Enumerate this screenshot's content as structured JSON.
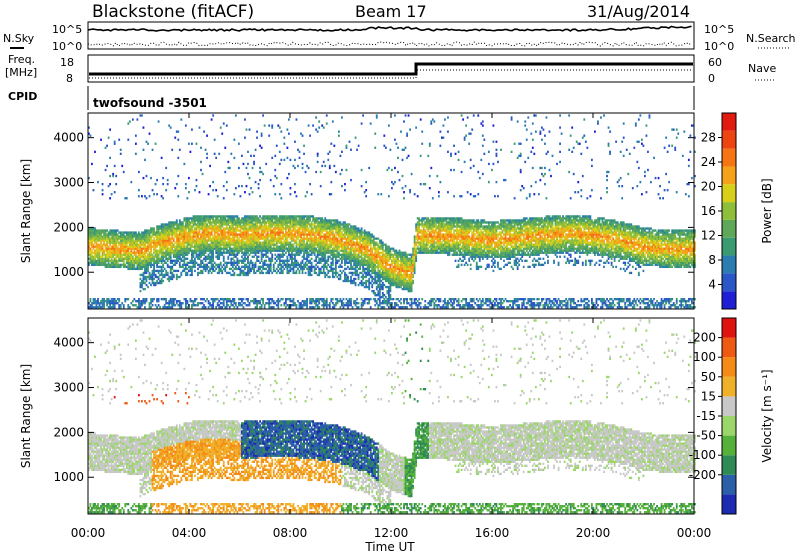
{
  "header": {
    "station": "Blackstone (fitACF)",
    "beam": "Beam 17",
    "date": "31/Aug/2014"
  },
  "labels": {
    "nsky": "N.Sky",
    "nsearch": "N.Search",
    "freq_line1": "Freq.",
    "freq_line2": "[MHz]",
    "nave": "Nave",
    "cpid": "CPID",
    "cpid_value": "twofsound  -3501",
    "noise_tick_top_left": "10^5",
    "noise_tick_bottom_left": "10^0",
    "noise_tick_top_right": "10^5",
    "noise_tick_bottom_right": "10^0",
    "freq_tick_top": "18",
    "freq_tick_bottom": "8",
    "nave_tick_top": "60",
    "nave_tick_bottom": "0"
  },
  "chart_data": [
    {
      "type": "heatmap",
      "name": "power",
      "ylabel": "Slant Range [km]",
      "xlabel": "Time UT",
      "xticks": [
        "00:00",
        "04:00",
        "08:00",
        "12:00",
        "16:00",
        "20:00",
        "00:00"
      ],
      "xlim": [
        0,
        24
      ],
      "yticks": [
        1000,
        2000,
        3000,
        4000
      ],
      "ylim": [
        180,
        4550
      ],
      "colorbar": {
        "label": "Power [dB]",
        "ticks": [
          4,
          8,
          12,
          16,
          20,
          24,
          28
        ],
        "colors": [
          "#1f1fd6",
          "#2a56c8",
          "#2b7cb0",
          "#3a9a72",
          "#5fa85a",
          "#8fbf3a",
          "#d8cf1a",
          "#f5a21a",
          "#f57515",
          "#ee4412",
          "#e21b10"
        ]
      },
      "ridge_km": [
        [
          0,
          1550
        ],
        [
          1,
          1500
        ],
        [
          2,
          1450
        ],
        [
          3,
          1650
        ],
        [
          4,
          1800
        ],
        [
          5,
          1850
        ],
        [
          6,
          1800
        ],
        [
          7,
          1850
        ],
        [
          8,
          1850
        ],
        [
          9,
          1800
        ],
        [
          10,
          1700
        ],
        [
          11,
          1500
        ],
        [
          12,
          1100
        ],
        [
          12.8,
          950
        ],
        [
          13,
          1800
        ],
        [
          14,
          1800
        ],
        [
          15,
          1750
        ],
        [
          16,
          1700
        ],
        [
          17,
          1750
        ],
        [
          18,
          1800
        ],
        [
          19,
          1850
        ],
        [
          20,
          1800
        ],
        [
          21,
          1700
        ],
        [
          22,
          1550
        ],
        [
          23,
          1500
        ],
        [
          24,
          1500
        ]
      ]
    },
    {
      "type": "heatmap",
      "name": "velocity",
      "ylabel": "Slant Range [km]",
      "xlabel": "Time UT",
      "xticks": [
        "00:00",
        "04:00",
        "08:00",
        "12:00",
        "16:00",
        "20:00",
        "00:00"
      ],
      "xlim": [
        0,
        24
      ],
      "yticks": [
        1000,
        2000,
        3000,
        4000
      ],
      "ylim": [
        180,
        4550
      ],
      "colorbar": {
        "label": "Velocity [m s⁻¹]",
        "ticks": [
          200,
          100,
          50,
          15,
          -15,
          -50,
          -100,
          -200
        ],
        "colors": [
          "#1c2bb0",
          "#2b5fa8",
          "#2f8a55",
          "#55b13a",
          "#9bd66a",
          "#c8c8c8",
          "#f0b12a",
          "#f48b16",
          "#ef5a13",
          "#e0140f"
        ]
      }
    }
  ],
  "footer": {
    "xlabel": "Time UT"
  }
}
